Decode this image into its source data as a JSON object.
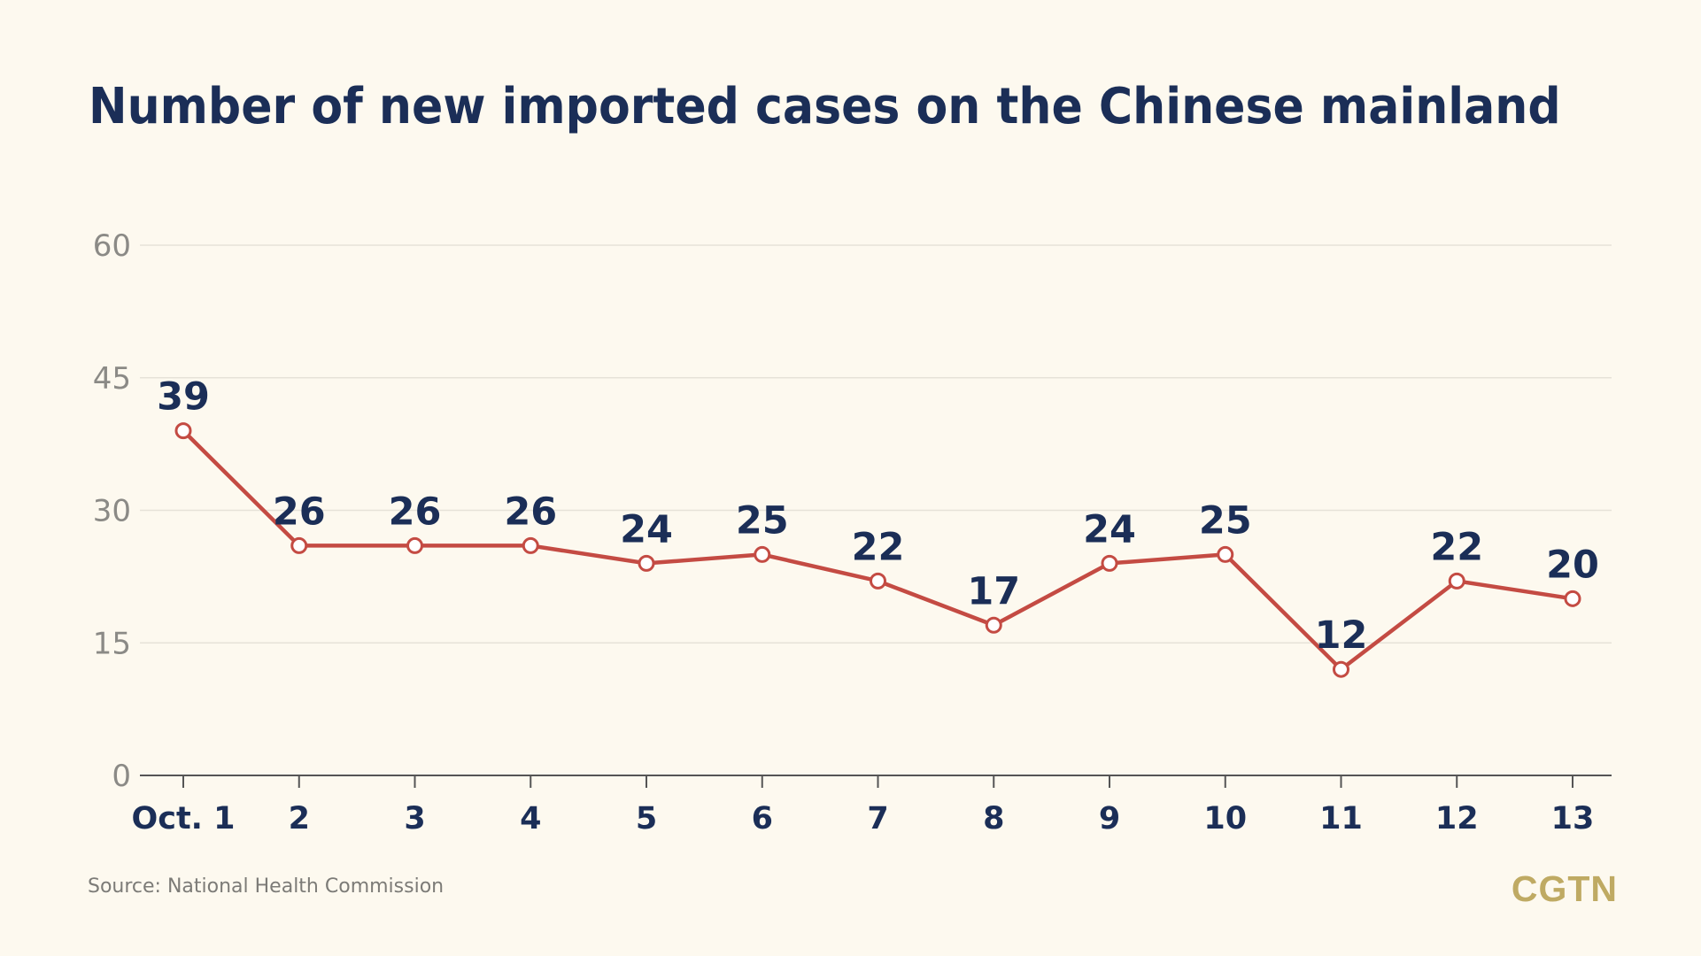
{
  "chart_data": {
    "type": "line",
    "title": "Number of new imported cases on the Chinese mainland",
    "categories": [
      "Oct. 1",
      "2",
      "3",
      "4",
      "5",
      "6",
      "7",
      "8",
      "9",
      "10",
      "11",
      "12",
      "13"
    ],
    "series": [
      {
        "name": "New imported cases",
        "values": [
          39,
          26,
          26,
          26,
          24,
          25,
          22,
          17,
          24,
          25,
          12,
          22,
          20
        ]
      }
    ],
    "yticks": [
      0,
      15,
      30,
      45,
      60
    ],
    "ylim": [
      0,
      60
    ],
    "xlabel": "",
    "ylabel": "",
    "grid": true,
    "line_color": "#c44b43",
    "marker_fill": "#ffffff"
  },
  "source": "Source: National Health Commission",
  "brand": "CGTN"
}
